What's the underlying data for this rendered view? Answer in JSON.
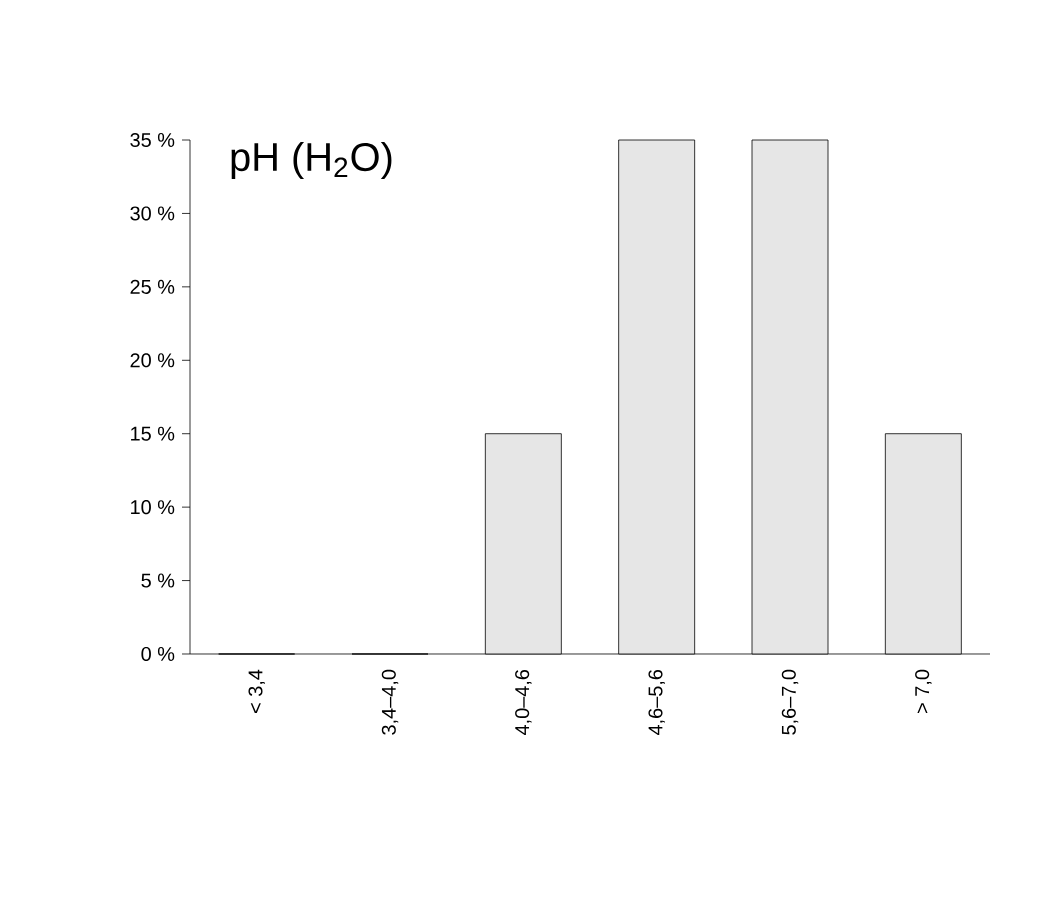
{
  "chart_data": {
    "type": "bar",
    "title": "pH (H$_{2}$O)",
    "categories": [
      "< 3,4",
      "3,4–4,0",
      "4,0–4,6",
      "4,6–5,6",
      "5,6–7,0",
      "> 7,0"
    ],
    "values": [
      0,
      0,
      15,
      35,
      35,
      15
    ],
    "color": "#e6e6e6",
    "ylim": [
      0,
      35
    ],
    "yticks": [
      {
        "value": 0,
        "label": "0 %"
      },
      {
        "value": 5,
        "label": "5 %"
      },
      {
        "value": 10,
        "label": "10 %"
      },
      {
        "value": 15,
        "label": "15 %"
      },
      {
        "value": 20,
        "label": "20 %"
      },
      {
        "value": 25,
        "label": "25 %"
      },
      {
        "value": 30,
        "label": "30 %"
      },
      {
        "value": 35,
        "label": "35 %"
      }
    ]
  }
}
